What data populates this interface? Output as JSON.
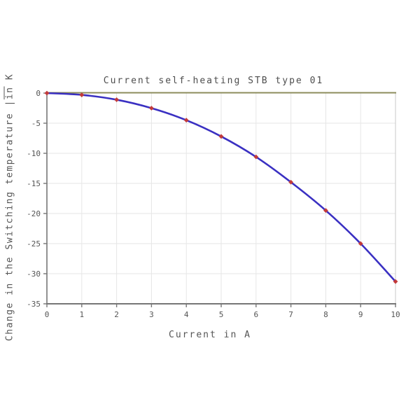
{
  "page": {
    "background": "#ffffff"
  },
  "chart_data": {
    "type": "line",
    "title": "Current self-heating STB type 01",
    "xlabel": "Current in A",
    "ylabel_parts": {
      "prefix": "Change in the Switching temperature ",
      "bar": "|",
      "marked": "in",
      "suffix": " K"
    },
    "x": [
      0,
      1,
      2,
      3,
      4,
      5,
      6,
      7,
      8,
      9,
      10
    ],
    "values": [
      0,
      -0.3,
      -1.1,
      -2.5,
      -4.5,
      -7.2,
      -10.6,
      -14.8,
      -19.5,
      -25.0,
      -31.3
    ],
    "x_ticks": [
      0,
      1,
      2,
      3,
      4,
      5,
      6,
      7,
      8,
      9,
      10
    ],
    "y_ticks": [
      0,
      -5,
      -10,
      -15,
      -20,
      -25,
      -30,
      -35
    ],
    "xlim": [
      0,
      10
    ],
    "ylim": [
      -35,
      0
    ],
    "grid": true,
    "legend": "none",
    "marker": "diamond",
    "colors": {
      "line": "#3a30c2",
      "marker": "#c23a3a",
      "grid": "#e6e6e6",
      "axis": "#767676",
      "top_border": "#8c8c5c",
      "right_border": "#c9c9c9",
      "text": "#555555"
    }
  }
}
